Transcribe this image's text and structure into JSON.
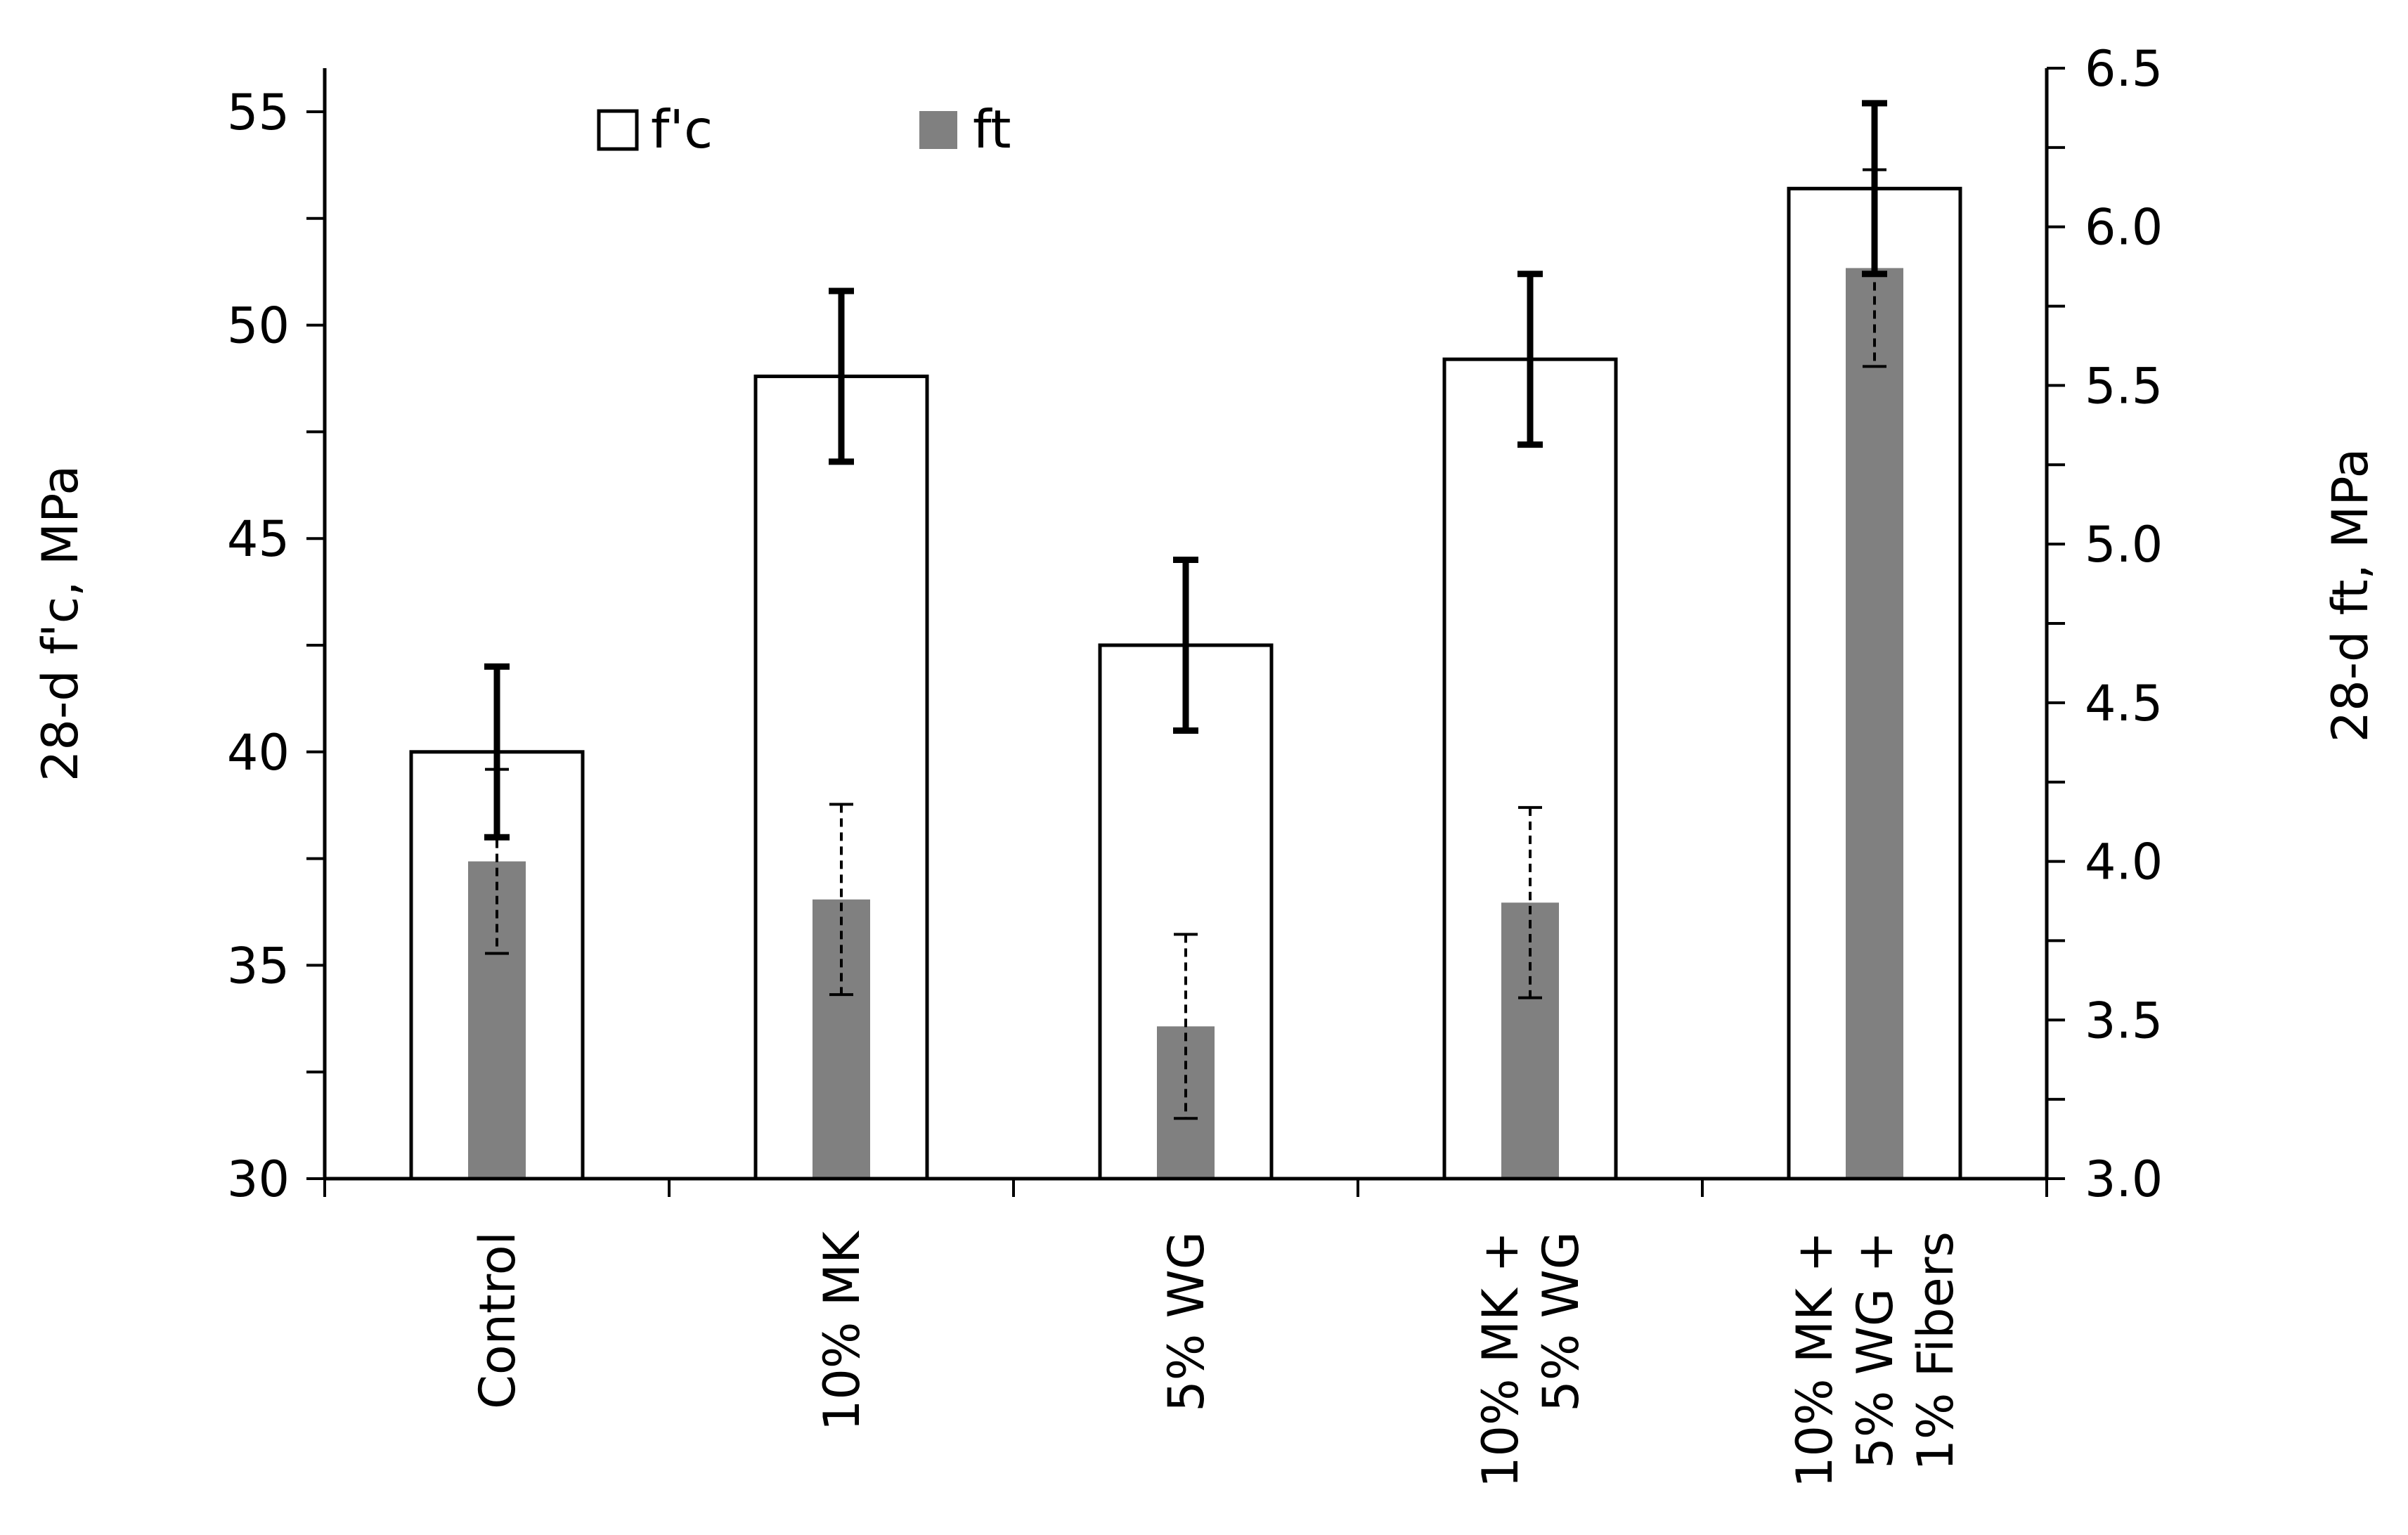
{
  "chart_data": {
    "type": "bar",
    "categories": [
      [
        "Control"
      ],
      [
        "10% MK"
      ],
      [
        "5% WG"
      ],
      [
        "10% MK +",
        "5% WG"
      ],
      [
        "10% MK +",
        "5% WG +",
        "1% Fibers"
      ]
    ],
    "series": [
      {
        "name": "f'c",
        "axis": "left",
        "values": [
          40.0,
          48.8,
          42.5,
          49.2,
          53.2
        ],
        "errors": [
          2.0,
          2.0,
          2.0,
          2.0,
          2.0
        ],
        "fill": "#ffffff",
        "stroke": "#000000",
        "error_style": "solid"
      },
      {
        "name": "ft",
        "axis": "right",
        "values": [
          4.0,
          3.88,
          3.48,
          3.87,
          5.87
        ],
        "errors": [
          0.29,
          0.3,
          0.29,
          0.3,
          0.31
        ],
        "fill": "#808080",
        "stroke": "none",
        "error_style": "dashed"
      }
    ],
    "left_axis": {
      "label": "28-d f'c, MPa",
      "range": [
        30,
        56
      ],
      "ticks": [
        "30",
        "35",
        "40",
        "45",
        "50",
        "55"
      ],
      "tick_values": [
        30,
        35,
        40,
        45,
        50,
        55
      ]
    },
    "right_axis": {
      "label": "28-d ft, MPa",
      "range": [
        3.0,
        6.5
      ],
      "ticks": [
        "3.0",
        "3.5",
        "4.0",
        "4.5",
        "5.0",
        "5.5",
        "6.0",
        "6.5"
      ],
      "tick_values": [
        3.0,
        3.5,
        4.0,
        4.5,
        5.0,
        5.5,
        6.0,
        6.5
      ]
    },
    "legend": {
      "position": "top-left",
      "entries": [
        "f'c",
        "ft"
      ]
    },
    "grid": false
  }
}
